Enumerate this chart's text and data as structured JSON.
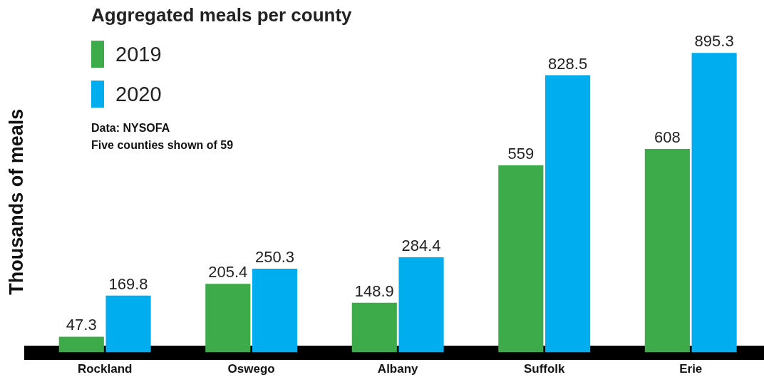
{
  "chart_data": {
    "type": "bar",
    "title": "Aggregated meals per county",
    "ylabel": "Thousands of meals",
    "categories": [
      "Rockland",
      "Oswego",
      "Albany",
      "Suffolk",
      "Erie"
    ],
    "series": [
      {
        "name": "2019",
        "color": "#3dab49",
        "values": [
          47.3,
          205.4,
          148.9,
          559,
          608
        ]
      },
      {
        "name": "2020",
        "color": "#00adef",
        "values": [
          169.8,
          250.3,
          284.4,
          828.5,
          895.3
        ]
      }
    ],
    "tick_labels": "x",
    "grid": false,
    "legend": "top left",
    "data_labels": true,
    "annotations": [
      "Data: NYSOFA",
      "Five counties shown of 59"
    ]
  }
}
